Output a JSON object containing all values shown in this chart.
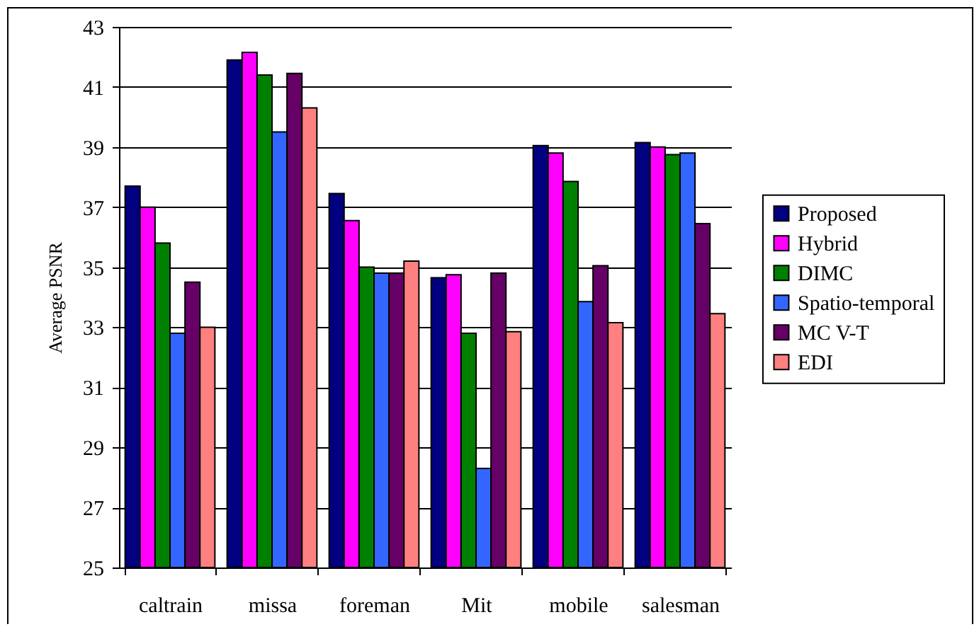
{
  "chart_data": {
    "type": "bar",
    "ylabel": "Average PSNR",
    "categories": [
      "caltrain",
      "missa",
      "foreman",
      "Mit",
      "mobile",
      "salesman"
    ],
    "series": [
      {
        "name": "Proposed",
        "color": "#000080",
        "values": [
          37.7,
          41.9,
          37.45,
          34.65,
          39.05,
          39.15
        ]
      },
      {
        "name": "Hybrid",
        "color": "#ff00ff",
        "values": [
          37.0,
          42.15,
          36.55,
          34.75,
          38.8,
          39.0
        ]
      },
      {
        "name": "DIMC",
        "color": "#008000",
        "values": [
          35.8,
          41.4,
          35.0,
          32.8,
          37.85,
          38.75
        ]
      },
      {
        "name": "Spatio-temporal",
        "color": "#3366ff",
        "values": [
          32.8,
          39.5,
          34.8,
          28.3,
          33.85,
          38.8
        ]
      },
      {
        "name": "MC V-T",
        "color": "#660066",
        "values": [
          34.5,
          41.45,
          34.8,
          34.8,
          35.05,
          36.45
        ]
      },
      {
        "name": "EDI",
        "color": "#ff8080",
        "values": [
          33.0,
          40.3,
          35.2,
          32.85,
          33.15,
          33.45
        ]
      }
    ],
    "ylim": [
      25,
      43
    ],
    "yticks": [
      25,
      27,
      29,
      31,
      33,
      35,
      37,
      39,
      41,
      43
    ],
    "grid": "y",
    "legend": "right"
  }
}
